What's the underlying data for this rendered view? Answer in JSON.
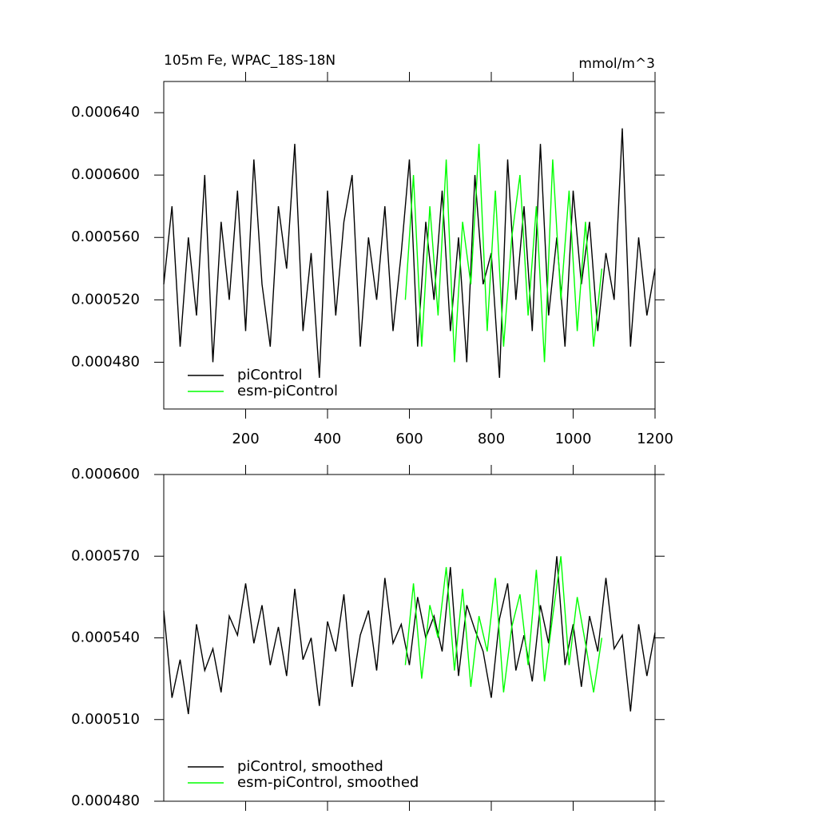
{
  "chart_data": [
    {
      "type": "line",
      "title": "105m Fe, WPAC_18S-18N",
      "unit": "mmol/m^3",
      "xlim": [
        0,
        1200
      ],
      "xticks": [
        200,
        400,
        600,
        800,
        1000,
        1200
      ],
      "show_xtick_labels": true,
      "ylim": [
        0.00045,
        0.00066
      ],
      "yticks": [
        {
          "value": 0.00048,
          "label": "0.000480"
        },
        {
          "value": 0.00052,
          "label": "0.000520"
        },
        {
          "value": 0.00056,
          "label": "0.000560"
        },
        {
          "value": 0.0006,
          "label": "0.000600"
        },
        {
          "value": 0.00064,
          "label": "0.000640"
        }
      ],
      "series": [
        {
          "name": "piControl",
          "color": "#000000",
          "x": [
            0,
            20,
            40,
            60,
            80,
            100,
            120,
            140,
            160,
            180,
            200,
            220,
            240,
            260,
            280,
            300,
            320,
            340,
            360,
            380,
            400,
            420,
            440,
            460,
            480,
            500,
            520,
            540,
            560,
            580,
            600,
            620,
            640,
            660,
            680,
            700,
            720,
            740,
            760,
            780,
            800,
            820,
            840,
            860,
            880,
            900,
            920,
            940,
            960,
            980,
            1000,
            1020,
            1040,
            1060,
            1080,
            1100,
            1120,
            1140,
            1160,
            1180,
            1200
          ],
          "values": [
            0.00053,
            0.00058,
            0.00049,
            0.00056,
            0.00051,
            0.0006,
            0.00048,
            0.00057,
            0.00052,
            0.00059,
            0.0005,
            0.00061,
            0.00053,
            0.00049,
            0.00058,
            0.00054,
            0.00062,
            0.0005,
            0.00055,
            0.00047,
            0.00059,
            0.00051,
            0.00057,
            0.0006,
            0.00049,
            0.00056,
            0.00052,
            0.00058,
            0.0005,
            0.00055,
            0.00061,
            0.00049,
            0.00057,
            0.00052,
            0.00059,
            0.0005,
            0.00056,
            0.00048,
            0.0006,
            0.00053,
            0.00055,
            0.00047,
            0.00061,
            0.00052,
            0.00058,
            0.0005,
            0.00062,
            0.00051,
            0.00056,
            0.00049,
            0.00059,
            0.00053,
            0.00057,
            0.0005,
            0.00055,
            0.00052,
            0.00063,
            0.00049,
            0.00056,
            0.00051,
            0.00054
          ]
        },
        {
          "name": "esm-piControl",
          "color": "#00ff00",
          "x": [
            590,
            610,
            630,
            650,
            670,
            690,
            710,
            730,
            750,
            770,
            790,
            810,
            830,
            850,
            870,
            890,
            910,
            930,
            950,
            970,
            990,
            1010,
            1030,
            1050,
            1070
          ],
          "values": [
            0.00052,
            0.0006,
            0.00049,
            0.00058,
            0.00051,
            0.00061,
            0.00048,
            0.00057,
            0.00053,
            0.00062,
            0.0005,
            0.00059,
            0.00049,
            0.00056,
            0.0006,
            0.00051,
            0.00058,
            0.00048,
            0.00061,
            0.00052,
            0.00059,
            0.0005,
            0.00057,
            0.00049,
            0.00054
          ]
        }
      ]
    },
    {
      "type": "line",
      "xlim": [
        0,
        1200
      ],
      "xticks": [
        200,
        400,
        600,
        800,
        1000,
        1200
      ],
      "show_xtick_labels": false,
      "ylim": [
        0.00048,
        0.0006
      ],
      "yticks": [
        {
          "value": 0.00048,
          "label": "0.000480"
        },
        {
          "value": 0.00051,
          "label": "0.000510"
        },
        {
          "value": 0.00054,
          "label": "0.000540"
        },
        {
          "value": 0.00057,
          "label": "0.000570"
        },
        {
          "value": 0.0006,
          "label": "0.000600"
        }
      ],
      "series": [
        {
          "name": "piControl, smoothed",
          "color": "#000000",
          "x": [
            0,
            20,
            40,
            60,
            80,
            100,
            120,
            140,
            160,
            180,
            200,
            220,
            240,
            260,
            280,
            300,
            320,
            340,
            360,
            380,
            400,
            420,
            440,
            460,
            480,
            500,
            520,
            540,
            560,
            580,
            600,
            620,
            640,
            660,
            680,
            700,
            720,
            740,
            760,
            780,
            800,
            820,
            840,
            860,
            880,
            900,
            920,
            940,
            960,
            980,
            1000,
            1020,
            1040,
            1060,
            1080,
            1100,
            1120,
            1140,
            1160,
            1180,
            1200
          ],
          "values": [
            0.00055,
            0.000518,
            0.000532,
            0.000512,
            0.000545,
            0.000528,
            0.000536,
            0.00052,
            0.000548,
            0.000541,
            0.00056,
            0.000538,
            0.000552,
            0.00053,
            0.000544,
            0.000526,
            0.000558,
            0.000532,
            0.00054,
            0.000515,
            0.000546,
            0.000535,
            0.000556,
            0.000522,
            0.000541,
            0.00055,
            0.000528,
            0.000562,
            0.000538,
            0.000545,
            0.00053,
            0.000555,
            0.00054,
            0.000548,
            0.000535,
            0.000566,
            0.000526,
            0.000552,
            0.000543,
            0.000535,
            0.000518,
            0.000547,
            0.00056,
            0.000528,
            0.000541,
            0.000524,
            0.000552,
            0.000538,
            0.00057,
            0.00053,
            0.000545,
            0.000522,
            0.000548,
            0.000535,
            0.000562,
            0.000536,
            0.000541,
            0.000513,
            0.000545,
            0.000526,
            0.000542
          ]
        },
        {
          "name": "esm-piControl, smoothed",
          "color": "#00ff00",
          "x": [
            590,
            610,
            630,
            650,
            670,
            690,
            710,
            730,
            750,
            770,
            790,
            810,
            830,
            850,
            870,
            890,
            910,
            930,
            950,
            970,
            990,
            1010,
            1030,
            1050,
            1070
          ],
          "values": [
            0.00053,
            0.00056,
            0.000525,
            0.000552,
            0.00054,
            0.000566,
            0.000528,
            0.000558,
            0.000522,
            0.000548,
            0.000535,
            0.000562,
            0.00052,
            0.000544,
            0.000556,
            0.00053,
            0.000565,
            0.000524,
            0.000548,
            0.00057,
            0.00053,
            0.000555,
            0.000538,
            0.00052,
            0.00054
          ]
        }
      ]
    }
  ]
}
